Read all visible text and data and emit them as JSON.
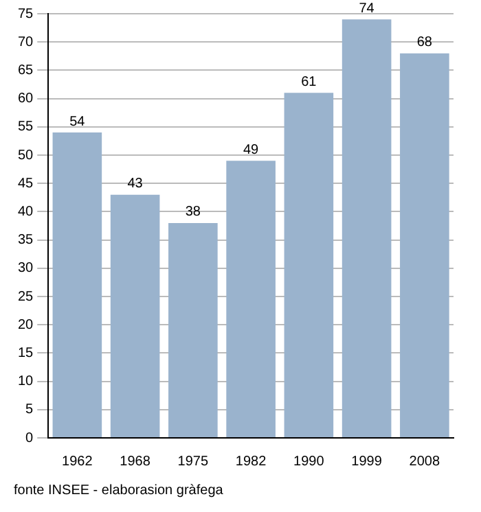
{
  "chart_data": {
    "type": "bar",
    "categories": [
      "1962",
      "1968",
      "1975",
      "1982",
      "1990",
      "1999",
      "2008"
    ],
    "values": [
      54,
      43,
      38,
      49,
      61,
      74,
      68
    ],
    "color": "#9ab3cd",
    "ylim": [
      0,
      75
    ],
    "yticks": [
      0,
      5,
      10,
      15,
      20,
      25,
      30,
      35,
      40,
      45,
      50,
      55,
      60,
      65,
      70,
      75
    ],
    "grid": "y",
    "data_labels": true,
    "annotations": [
      "fonte INSEE - elaborasion gràfega"
    ]
  }
}
